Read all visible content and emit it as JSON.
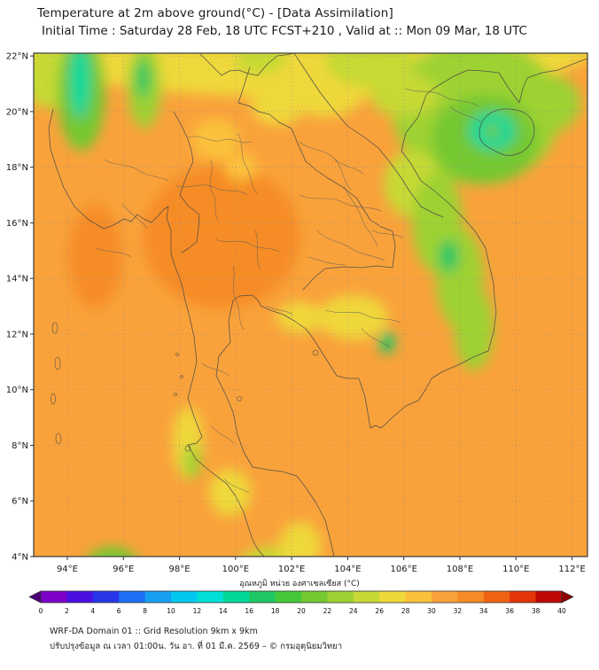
{
  "header": {
    "title": "Temperature at 2m above ground(°C) - [Data Assimilation]",
    "subtitle": "Initial Time : Saturday 28 Feb, 18 UTC FCST+210 , Valid at :: Mon 09 Mar, 18 UTC"
  },
  "map": {
    "lat_values": [
      22,
      20,
      18,
      16,
      14,
      12,
      10,
      8,
      6,
      4
    ],
    "lat_labels": [
      "22°N",
      "20°N",
      "18°N",
      "16°N",
      "14°N",
      "12°N",
      "10°N",
      "8°N",
      "6°N",
      "4°N"
    ],
    "lon_values": [
      94,
      96,
      98,
      100,
      102,
      104,
      106,
      108,
      110,
      112
    ],
    "lon_labels": [
      "94°E",
      "96°E",
      "98°E",
      "100°E",
      "102°E",
      "104°E",
      "106°E",
      "108°E",
      "110°E",
      "112°E"
    ]
  },
  "colorbar": {
    "label": "อุณหภูมิ หน่วย องศาเซลเซียส (°C)",
    "tick_labels": [
      "0",
      "2",
      "4",
      "6",
      "8",
      "10",
      "12",
      "14",
      "16",
      "18",
      "20",
      "22",
      "24",
      "26",
      "28",
      "30",
      "32",
      "34",
      "36",
      "38",
      "40"
    ],
    "segment_colors": [
      "#7D00C8",
      "#4A10E0",
      "#2636E8",
      "#1E6FF5",
      "#18A0F0",
      "#00C8F0",
      "#00E0D8",
      "#00D89A",
      "#1EC864",
      "#44C83A",
      "#74C832",
      "#9ED133",
      "#C6D936",
      "#EFD83A",
      "#FBC13A",
      "#F9A23B",
      "#F68C28",
      "#EF6314",
      "#E3340A",
      "#C00808"
    ],
    "under_color": "#4A0078",
    "over_color": "#8F0000"
  },
  "footer": {
    "line1": "WRF-DA Domain 01 :: Grid Resolution 9km x 9km",
    "line2": "ปรับปรุงข้อมูล ณ เวลา 01:00น. วัน อา. ที่ 01 มี.ค. 2569 – © กรมอุตุนิยมวิทยา"
  },
  "chart_data": {
    "type": "heatmap",
    "title": "Temperature at 2m above ground (°C)",
    "units": "°C",
    "lon_range": [
      92.8,
      112.55
    ],
    "lat_range": [
      4.0,
      22.1
    ],
    "scale_range": [
      0,
      40
    ],
    "scale_step": 2,
    "grid": "dotted, every 2 degrees",
    "background_temp_c": 30.5,
    "features": [
      {
        "lon": 102.5,
        "lat": 22.4,
        "rx": 10.5,
        "ry": 1.9,
        "t": 26.5
      },
      {
        "lon": 93.6,
        "lat": 21.2,
        "rx": 1.3,
        "ry": 1.1,
        "t": 25
      },
      {
        "lon": 100.9,
        "lat": 21.9,
        "rx": 0.9,
        "ry": 0.55,
        "t": 24
      },
      {
        "lon": 94.5,
        "lat": 20.7,
        "rx": 0.85,
        "ry": 2.1,
        "t": 21
      },
      {
        "lon": 94.45,
        "lat": 21.1,
        "rx": 0.38,
        "ry": 1.35,
        "t": 15
      },
      {
        "lon": 96.75,
        "lat": 20.9,
        "rx": 0.6,
        "ry": 1.5,
        "t": 22
      },
      {
        "lon": 96.7,
        "lat": 21.2,
        "rx": 0.26,
        "ry": 0.7,
        "t": 17
      },
      {
        "lon": 108.6,
        "lat": 20.0,
        "rx": 3.0,
        "ry": 2.6,
        "t": 22
      },
      {
        "lon": 108.9,
        "lat": 19.0,
        "rx": 1.9,
        "ry": 1.6,
        "t": 20
      },
      {
        "lon": 109.15,
        "lat": 19.3,
        "rx": 0.85,
        "ry": 0.7,
        "t": 15
      },
      {
        "lon": 109.15,
        "lat": 19.3,
        "rx": 0.3,
        "ry": 0.25,
        "t": 21
      },
      {
        "lon": 111.3,
        "lat": 20.3,
        "rx": 1.0,
        "ry": 1.0,
        "t": 22
      },
      {
        "lon": 103.2,
        "lat": 20.9,
        "rx": 1.5,
        "ry": 1.1,
        "t": 26
      },
      {
        "lon": 101.5,
        "lat": 20.3,
        "rx": 0.95,
        "ry": 0.8,
        "t": 26
      },
      {
        "lon": 104.8,
        "lat": 21.8,
        "rx": 1.6,
        "ry": 0.9,
        "t": 24
      },
      {
        "lon": 106.0,
        "lat": 20.6,
        "rx": 1.2,
        "ry": 0.8,
        "t": 25
      },
      {
        "lon": 106.3,
        "lat": 17.4,
        "rx": 1.0,
        "ry": 1.2,
        "t": 24
      },
      {
        "lon": 107.2,
        "lat": 16.0,
        "rx": 0.9,
        "ry": 1.8,
        "t": 23
      },
      {
        "lon": 108.0,
        "lat": 14.0,
        "rx": 0.85,
        "ry": 1.8,
        "t": 22
      },
      {
        "lon": 107.6,
        "lat": 14.8,
        "rx": 0.35,
        "ry": 0.6,
        "t": 16
      },
      {
        "lon": 108.5,
        "lat": 12.2,
        "rx": 0.7,
        "ry": 1.5,
        "t": 23
      },
      {
        "lon": 99.5,
        "lat": 15.5,
        "rx": 2.8,
        "ry": 2.6,
        "t": 32.2
      },
      {
        "lon": 99.2,
        "lat": 16.3,
        "rx": 1.6,
        "ry": 1.5,
        "t": 32.6
      },
      {
        "lon": 95.0,
        "lat": 14.8,
        "rx": 0.95,
        "ry": 1.9,
        "t": 32.4
      },
      {
        "lon": 99.3,
        "lat": 19.0,
        "rx": 0.85,
        "ry": 0.75,
        "t": 28
      },
      {
        "lon": 100.2,
        "lat": 18.0,
        "rx": 0.6,
        "ry": 0.5,
        "t": 28
      },
      {
        "lon": 104.2,
        "lat": 12.6,
        "rx": 1.25,
        "ry": 0.8,
        "t": 27
      },
      {
        "lon": 105.4,
        "lat": 11.7,
        "rx": 0.28,
        "ry": 0.4,
        "t": 16
      },
      {
        "lon": 102.3,
        "lat": 12.6,
        "rx": 0.85,
        "ry": 0.55,
        "t": 27
      },
      {
        "lon": 98.3,
        "lat": 8.1,
        "rx": 0.55,
        "ry": 1.3,
        "t": 26
      },
      {
        "lon": 98.45,
        "lat": 7.4,
        "rx": 0.3,
        "ry": 0.6,
        "t": 22
      },
      {
        "lon": 99.8,
        "lat": 6.3,
        "rx": 0.75,
        "ry": 0.85,
        "t": 26.5
      },
      {
        "lon": 95.6,
        "lat": 3.5,
        "rx": 1.05,
        "ry": 0.85,
        "t": 21
      },
      {
        "lon": 95.45,
        "lat": 3.4,
        "rx": 0.4,
        "ry": 0.35,
        "t": 16
      },
      {
        "lon": 101.3,
        "lat": 3.6,
        "rx": 1.25,
        "ry": 0.75,
        "t": 24
      },
      {
        "lon": 102.3,
        "lat": 4.4,
        "rx": 0.75,
        "ry": 0.85,
        "t": 26
      }
    ]
  }
}
